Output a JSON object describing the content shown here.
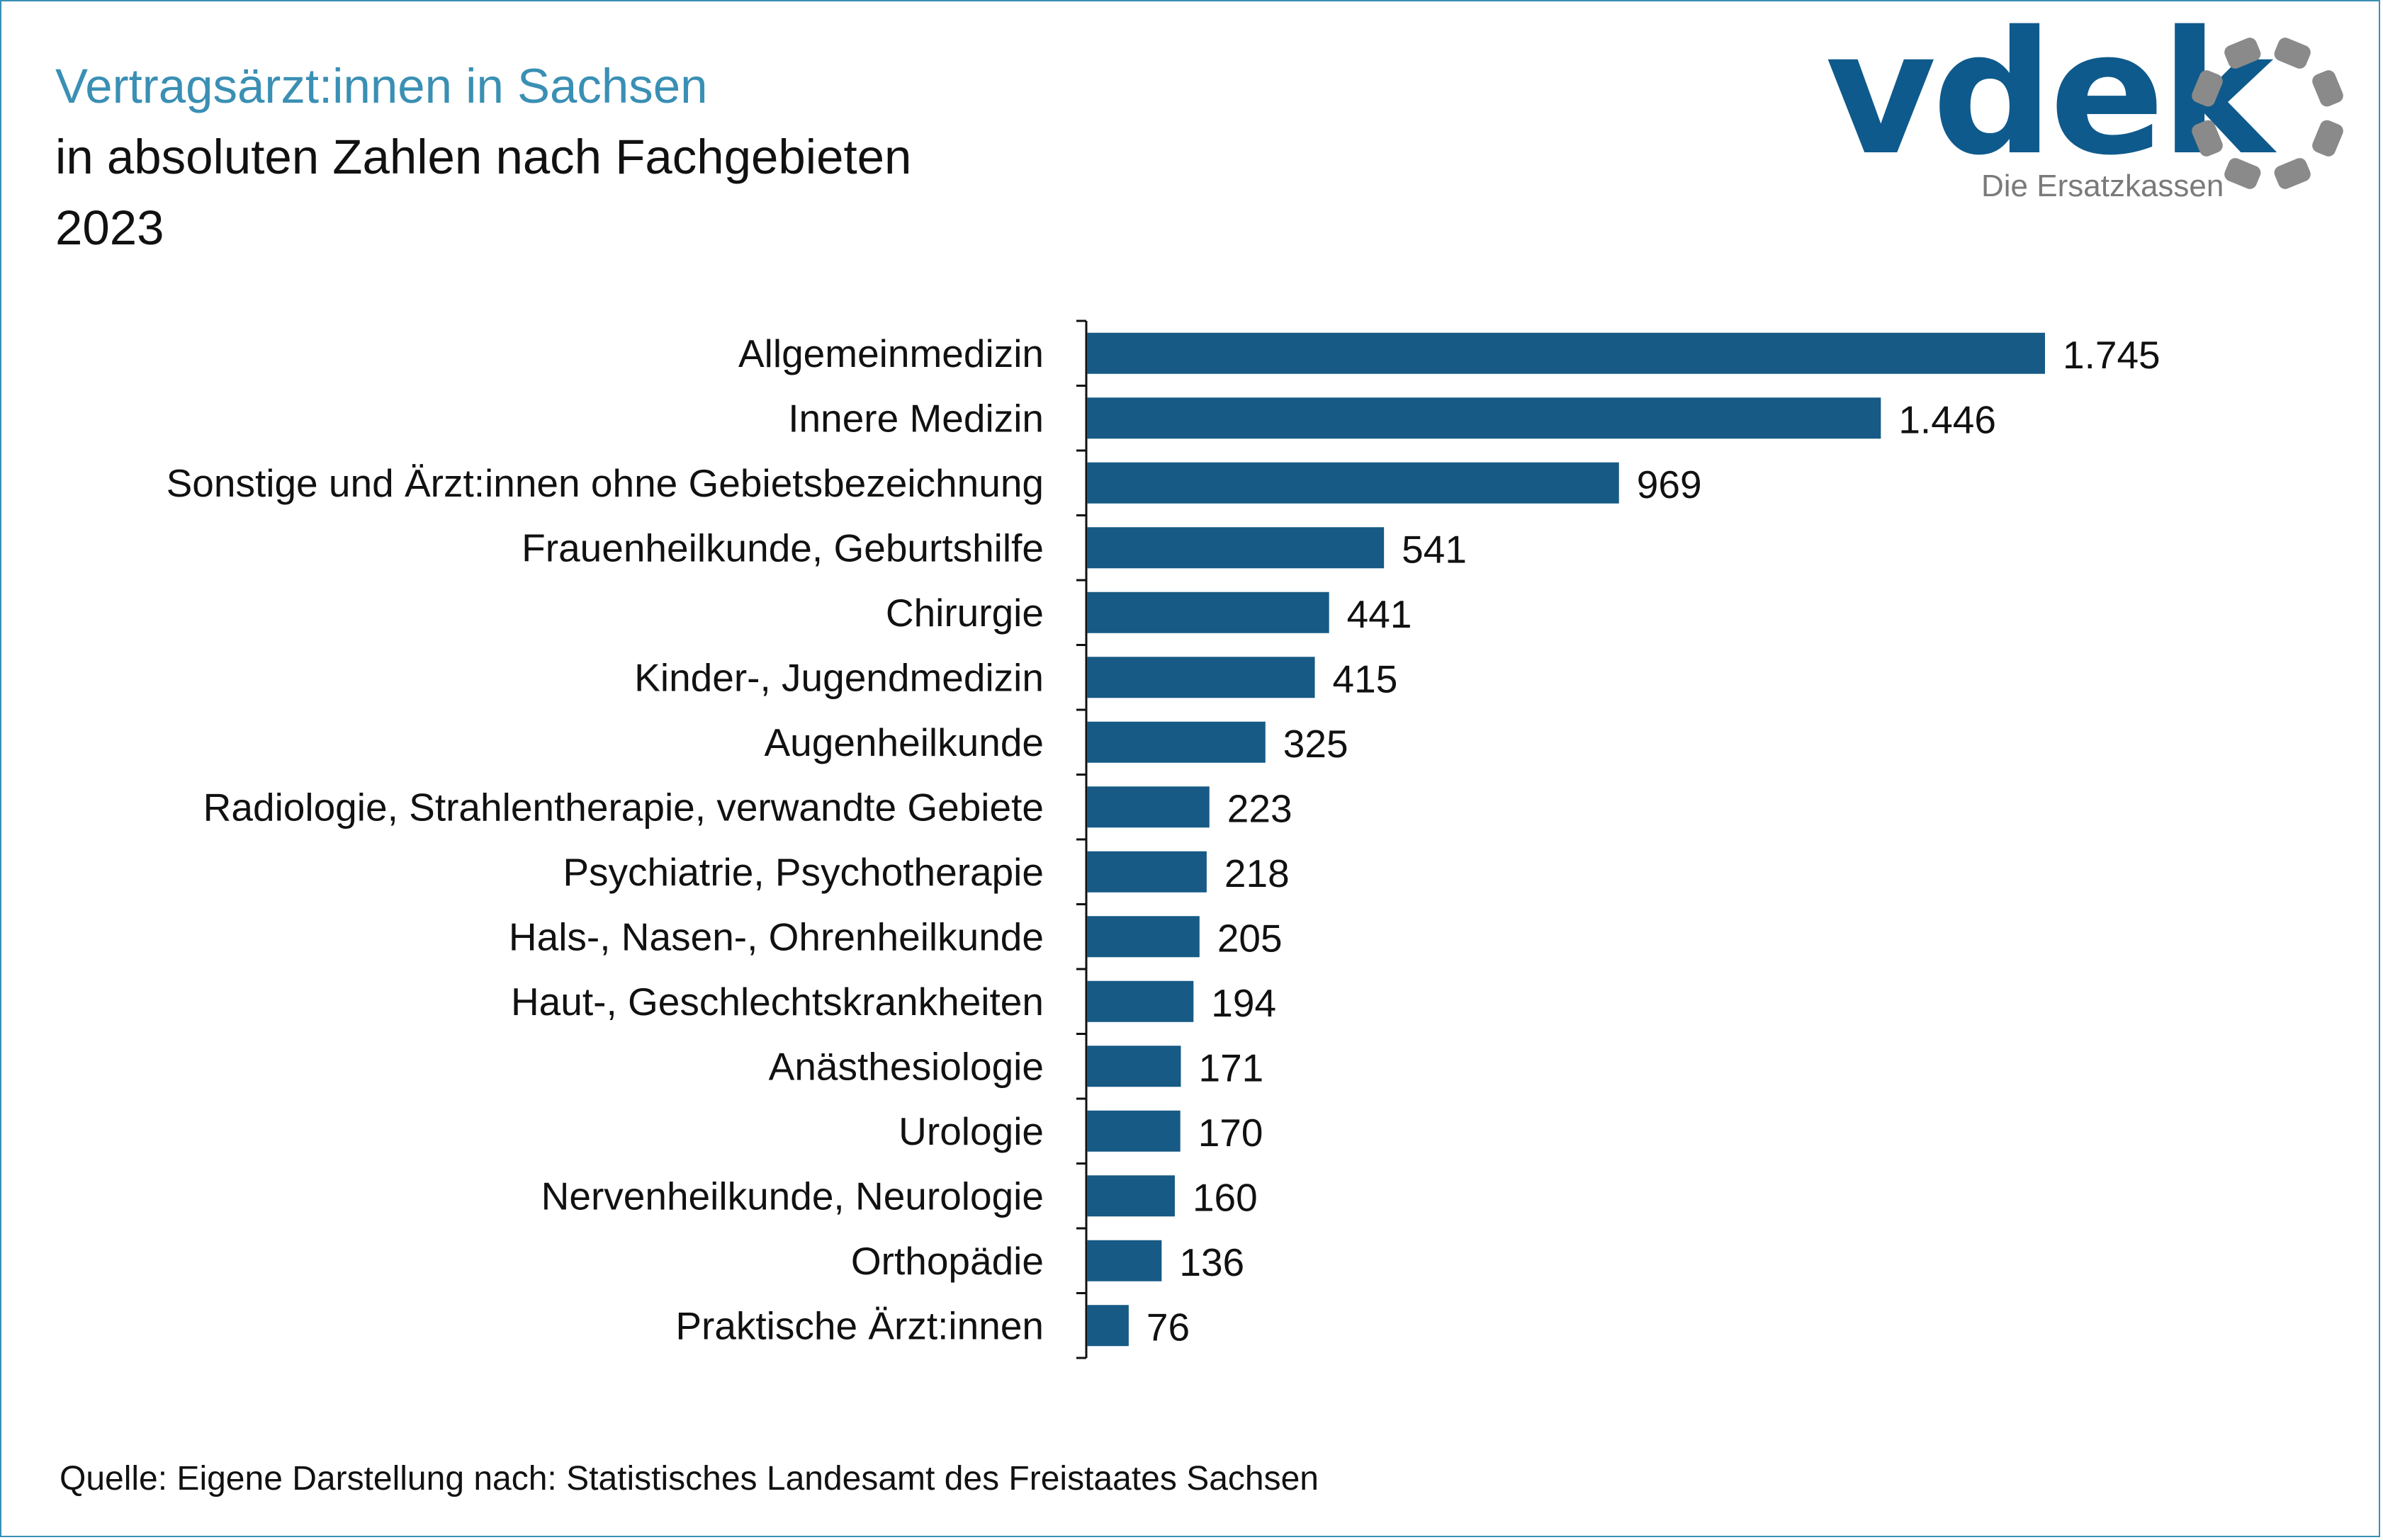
{
  "header": {
    "title": "Vertragsärzt:innen in Sachsen",
    "subtitle": "in absoluten Zahlen nach Fachgebieten",
    "year": "2023"
  },
  "logo": {
    "wordmark": "vdek",
    "tagline": "Die Ersatzkassen"
  },
  "source": "Quelle: Eigene Darstellung nach: Statistisches Landesamt des Freistaates Sachsen",
  "colors": {
    "bar": "#175a85",
    "title": "#3a8fb4",
    "frame": "#3a8fb4",
    "logo_blue": "#0f5a8c",
    "logo_gray": "#8a8a8a"
  },
  "chart_data": {
    "type": "bar",
    "orientation": "horizontal",
    "title": "Vertragsärzt:innen in Sachsen",
    "categories": [
      "Allgemeinmedizin",
      "Innere Medizin",
      "Sonstige und Ärzt:innen ohne Gebietsbezeichnung",
      "Frauenheilkunde, Geburtshilfe",
      "Chirurgie",
      "Kinder-, Jugendmedizin",
      "Augenheilkunde",
      "Radiologie, Strahlentherapie, verwandte Gebiete",
      "Psychiatrie, Psychotherapie",
      "Hals-, Nasen-, Ohrenheilkunde",
      "Haut-, Geschlechtskrankheiten",
      "Anästhesiologie",
      "Urologie",
      "Nervenheilkunde, Neurologie",
      "Orthopädie",
      "Praktische Ärzt:innen"
    ],
    "values": [
      1745,
      1446,
      969,
      541,
      441,
      415,
      325,
      223,
      218,
      205,
      194,
      171,
      170,
      160,
      136,
      76
    ],
    "value_labels": [
      "1.745",
      "1.446",
      "969",
      "541",
      "441",
      "415",
      "325",
      "223",
      "218",
      "205",
      "194",
      "171",
      "170",
      "160",
      "136",
      "76"
    ],
    "xlim": [
      0,
      1745
    ],
    "grid": false,
    "legend": "none"
  }
}
